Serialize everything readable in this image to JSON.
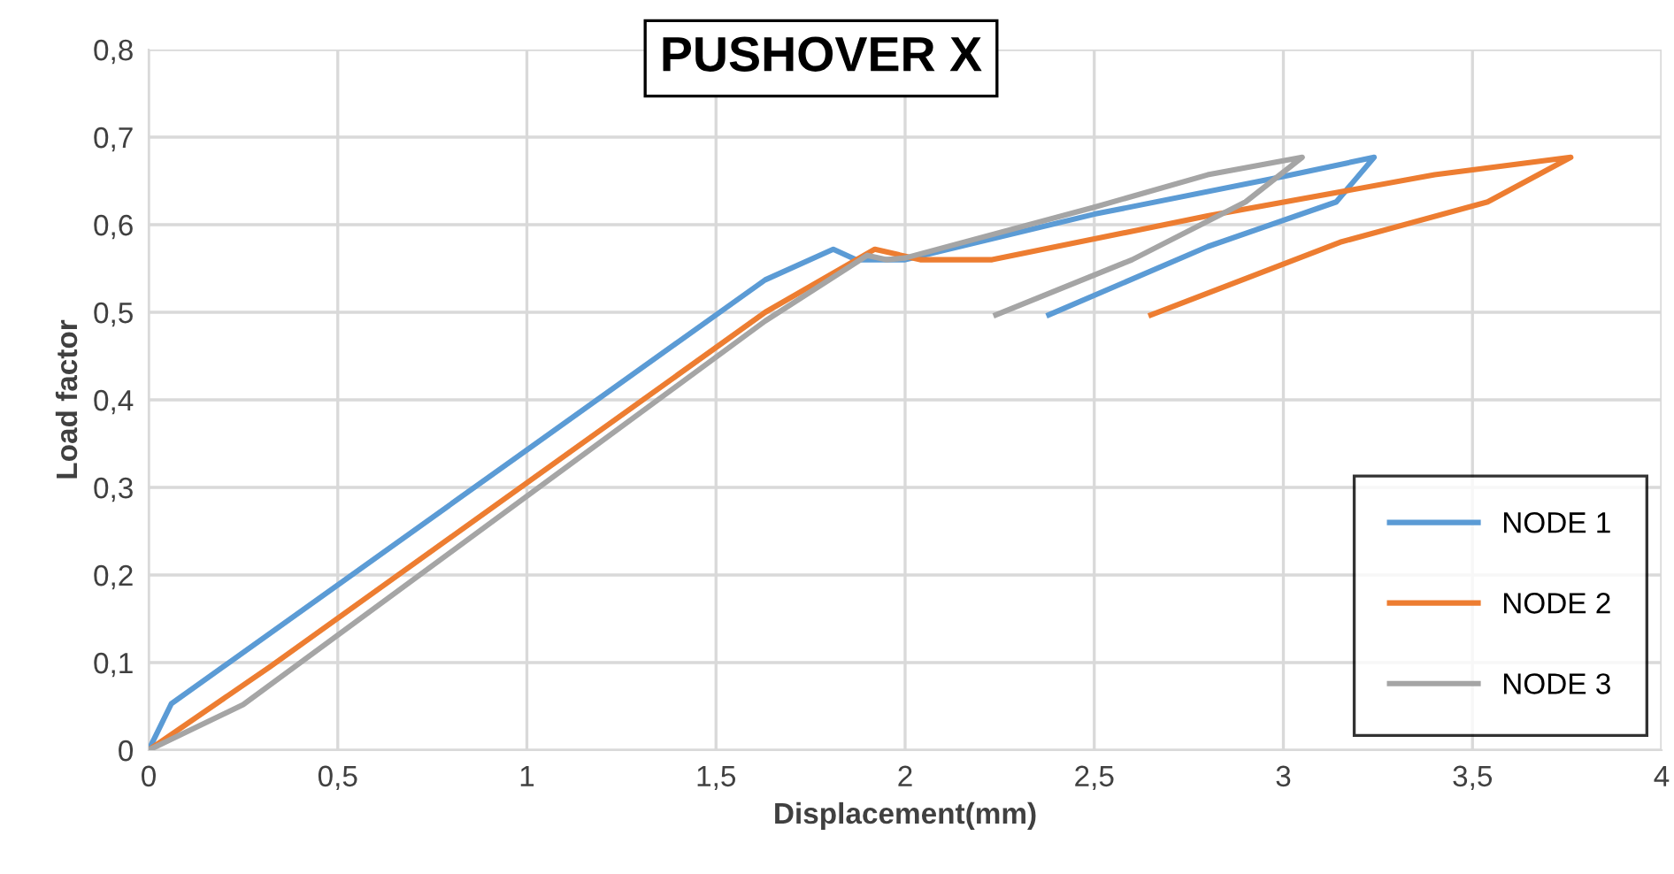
{
  "chart_data": {
    "type": "line",
    "title": "PUSHOVER X",
    "xlabel": "Displacement(mm)",
    "ylabel": "Load factor",
    "xlim": [
      0,
      4
    ],
    "xticks": [
      {
        "value": 0,
        "label": "0"
      },
      {
        "value": 0.5,
        "label": "0,5"
      },
      {
        "value": 1,
        "label": "1"
      },
      {
        "value": 1.5,
        "label": "1,5"
      },
      {
        "value": 2,
        "label": "2"
      },
      {
        "value": 2.5,
        "label": "2,5"
      },
      {
        "value": 3,
        "label": "3"
      },
      {
        "value": 3.5,
        "label": "3,5"
      },
      {
        "value": 4,
        "label": "4"
      }
    ],
    "ylim": [
      0,
      0.8
    ],
    "yticks": [
      {
        "value": 0,
        "label": "0"
      },
      {
        "value": 0.1,
        "label": "0,1"
      },
      {
        "value": 0.2,
        "label": "0,2"
      },
      {
        "value": 0.3,
        "label": "0,3"
      },
      {
        "value": 0.4,
        "label": "0,4"
      },
      {
        "value": 0.5,
        "label": "0,5"
      },
      {
        "value": 0.6,
        "label": "0,6"
      },
      {
        "value": 0.7,
        "label": "0,7"
      },
      {
        "value": 0.8,
        "label": "0,8"
      }
    ],
    "grid": true,
    "legend": "bottom right",
    "marker": "none",
    "line_style": "solid",
    "series": [
      {
        "name": "NODE 1",
        "color": "#5b9bd5",
        "x": [
          0,
          0.06,
          1.63,
          1.81,
          1.87,
          2.0,
          2.5,
          3.0,
          3.24,
          3.14,
          2.8,
          2.38
        ],
        "values": [
          0,
          0.053,
          0.537,
          0.572,
          0.56,
          0.56,
          0.612,
          0.655,
          0.677,
          0.626,
          0.575,
          0.497
        ]
      },
      {
        "name": "NODE 2",
        "color": "#ed7d31",
        "x": [
          0,
          0.32,
          1.63,
          1.92,
          2.04,
          2.23,
          2.8,
          3.4,
          3.76,
          3.54,
          3.15,
          2.65
        ],
        "values": [
          0,
          0.095,
          0.5,
          0.572,
          0.56,
          0.56,
          0.61,
          0.657,
          0.677,
          0.626,
          0.58,
          0.497
        ]
      },
      {
        "name": "NODE 3",
        "color": "#a5a5a5",
        "x": [
          0,
          0.25,
          1.63,
          1.9,
          1.95,
          2.0,
          2.5,
          2.8,
          3.05,
          2.9,
          2.6,
          2.24
        ],
        "values": [
          0,
          0.052,
          0.49,
          0.565,
          0.56,
          0.562,
          0.62,
          0.657,
          0.677,
          0.626,
          0.56,
          0.497
        ]
      }
    ]
  }
}
